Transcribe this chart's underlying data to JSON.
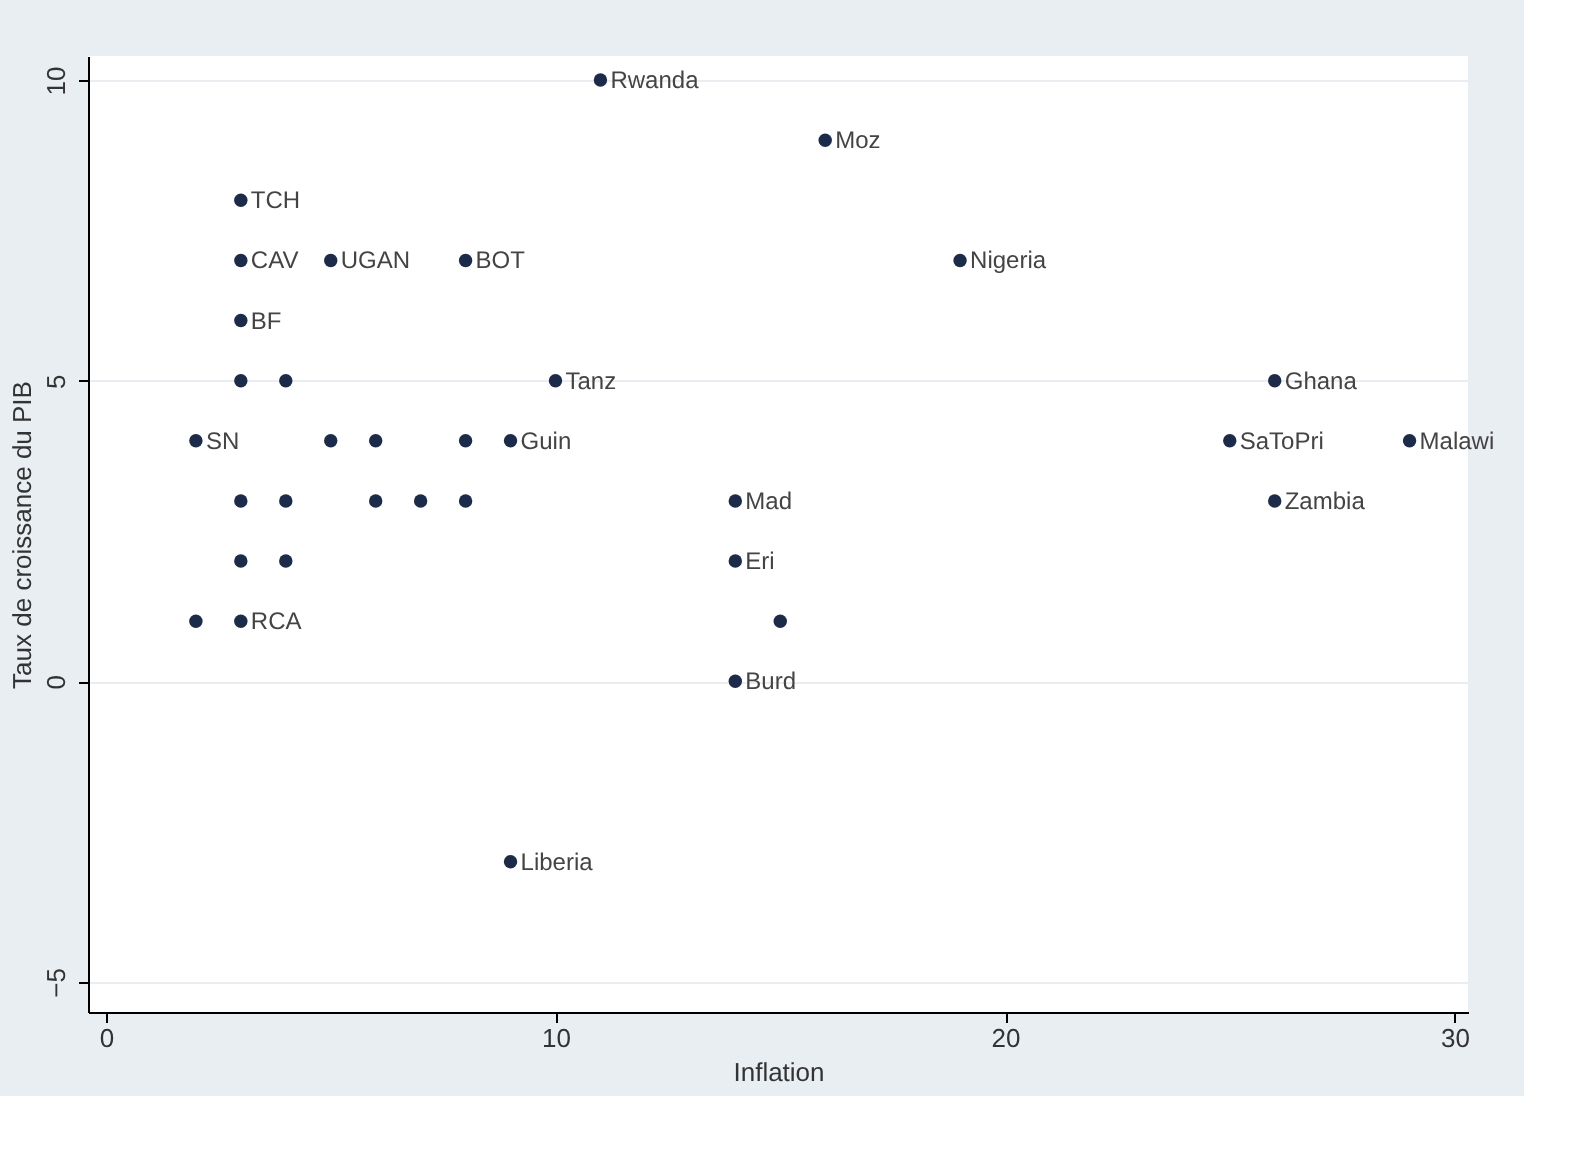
{
  "chart_data": {
    "type": "scatter",
    "xlabel": "Inflation",
    "ylabel": "Taux de croissance du PIB",
    "x": [
      11,
      16,
      3,
      3,
      5,
      8,
      19,
      3,
      3,
      4,
      10,
      26,
      2,
      5,
      6,
      8,
      9,
      25,
      29,
      3,
      4,
      6,
      7,
      8,
      14,
      26,
      3,
      4,
      14,
      2,
      3,
      15,
      14,
      9
    ],
    "series": [
      {
        "color": "#1c2b4a",
        "values": [
          10,
          9,
          8,
          7,
          7,
          7,
          7,
          6,
          5,
          5,
          5,
          5,
          4,
          4,
          4,
          4,
          4,
          4,
          4,
          3,
          3,
          3,
          3,
          3,
          3,
          3,
          2,
          2,
          2,
          1,
          1,
          1,
          0,
          -3
        ]
      }
    ],
    "annotations": [
      {
        "text": "Rwanda",
        "x": 11,
        "y": 10
      },
      {
        "text": "Moz",
        "x": 16,
        "y": 9
      },
      {
        "text": "TCH",
        "x": 3,
        "y": 8
      },
      {
        "text": "CAV",
        "x": 3,
        "y": 7
      },
      {
        "text": "UGAN",
        "x": 5,
        "y": 7
      },
      {
        "text": "BOT",
        "x": 8,
        "y": 7
      },
      {
        "text": "Nigeria",
        "x": 19,
        "y": 7
      },
      {
        "text": "BF",
        "x": 3,
        "y": 6
      },
      {
        "text": "Tanz",
        "x": 10,
        "y": 5
      },
      {
        "text": "Ghana",
        "x": 26,
        "y": 5
      },
      {
        "text": "SN",
        "x": 2,
        "y": 4
      },
      {
        "text": "Guin",
        "x": 9,
        "y": 4
      },
      {
        "text": "SaToPri",
        "x": 25,
        "y": 4
      },
      {
        "text": "Malawi",
        "x": 29,
        "y": 4
      },
      {
        "text": "Mad",
        "x": 14,
        "y": 3
      },
      {
        "text": "Zambia",
        "x": 26,
        "y": 3
      },
      {
        "text": "Eri",
        "x": 14,
        "y": 2
      },
      {
        "text": "RCA",
        "x": 3,
        "y": 1
      },
      {
        "text": "Burd",
        "x": 14,
        "y": 0
      },
      {
        "text": "Liberia",
        "x": 9,
        "y": -3
      }
    ],
    "xlim": [
      -0.4,
      30.3
    ],
    "ylim": [
      -5.5,
      10.4
    ],
    "xticks": [
      0,
      10,
      20,
      30
    ],
    "yticks": [
      -5,
      0,
      5,
      10
    ],
    "grid": "y",
    "marker": "circle"
  }
}
